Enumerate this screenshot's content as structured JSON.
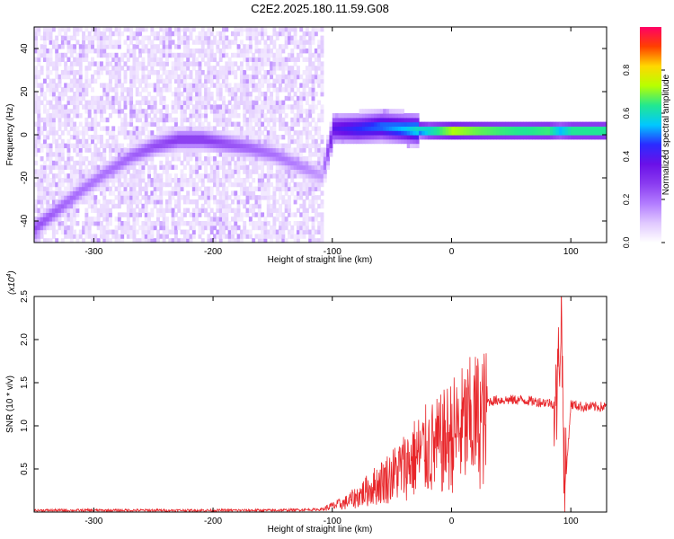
{
  "title": "C2E2.2025.180.11.59.G08",
  "colors": {
    "snr_line": "#e8262a",
    "axis": "#000000",
    "colormap": [
      "#ffffff",
      "#e0c8ff",
      "#b27cff",
      "#8a3cf0",
      "#6a10e8",
      "#2b2bff",
      "#00c8ff",
      "#22e890",
      "#b8ff00",
      "#ffd800",
      "#ff4000",
      "#ff0066"
    ]
  },
  "chart_data": [
    {
      "type": "heatmap",
      "name": "spectrogram",
      "xlabel": "Height of straight line (km)",
      "ylabel": "Frequency (Hz)",
      "xlim": [
        -350,
        130
      ],
      "ylim": [
        -50,
        50
      ],
      "xticks": [
        -300,
        -200,
        -100,
        0,
        100
      ],
      "xtick_labels": [
        "-300",
        "-200",
        "-100",
        "0",
        "100"
      ],
      "yticks": [
        -40,
        -20,
        0,
        20,
        40
      ],
      "ytick_labels": [
        "-40",
        "-20",
        "0",
        "20",
        "40"
      ],
      "colorbar": {
        "label": "Normalized spectral amplitude",
        "range": [
          0,
          1
        ],
        "ticks": [
          0.0,
          0.2,
          0.4,
          0.6,
          0.8
        ],
        "tick_labels": [
          "0.0",
          "0.2",
          "0.4",
          "0.6",
          "0.8"
        ]
      },
      "noise_region_x": [
        -350,
        -108
      ],
      "signal_track": {
        "x": [
          -350,
          -330,
          -310,
          -290,
          -270,
          -250,
          -230,
          -210,
          -190,
          -170,
          -150,
          -130,
          -110,
          -100,
          -80,
          -60,
          -40,
          -20,
          0,
          20,
          40,
          60,
          80,
          90,
          100,
          130
        ],
        "y": [
          -44,
          -35,
          -26,
          -18,
          -11,
          -6,
          -3,
          -3,
          -5,
          -7,
          -10,
          -15,
          -20,
          2,
          2,
          3,
          2,
          1,
          1,
          1,
          1,
          1,
          1,
          1,
          1,
          1
        ],
        "peak_amplitude": [
          0.25,
          0.22,
          0.2,
          0.2,
          0.22,
          0.25,
          0.28,
          0.28,
          0.25,
          0.22,
          0.2,
          0.18,
          0.15,
          0.38,
          0.45,
          0.5,
          0.55,
          0.65,
          0.8,
          0.75,
          0.72,
          0.7,
          0.72,
          0.6,
          0.7,
          0.7
        ]
      }
    },
    {
      "type": "line",
      "name": "snr",
      "xlabel": "Height of straight line (km)",
      "ylabel": "SNR (10 * v/v)",
      "y_multiplier": "(x10",
      "y_multiplier_exp": "4",
      "y_multiplier_close": ")",
      "xlim": [
        -350,
        130
      ],
      "ylim": [
        0,
        2.5
      ],
      "xticks": [
        -300,
        -200,
        -100,
        0,
        100
      ],
      "xtick_labels": [
        "-300",
        "-200",
        "-100",
        "0",
        "100"
      ],
      "yticks": [
        0.5,
        1.0,
        1.5,
        2.0,
        2.5
      ],
      "ytick_labels": [
        "0.5",
        "1.0",
        "1.5",
        "2.0",
        "2.5"
      ],
      "series": [
        {
          "x": [
            -350,
            -300,
            -250,
            -200,
            -150,
            -110,
            -100,
            -90,
            -80,
            -70,
            -60,
            -50,
            -40,
            -30,
            -20,
            -10,
            0,
            10,
            20,
            30,
            40,
            50,
            60,
            70,
            80,
            88,
            92,
            95,
            100,
            110,
            120,
            130
          ],
          "y": [
            0.02,
            0.02,
            0.02,
            0.02,
            0.02,
            0.03,
            0.08,
            0.12,
            0.2,
            0.3,
            0.4,
            0.5,
            0.62,
            0.75,
            0.85,
            0.9,
            1.05,
            1.15,
            1.25,
            1.28,
            1.3,
            1.3,
            1.3,
            1.28,
            1.27,
            1.25,
            2.3,
            0.2,
            1.25,
            1.22,
            1.22,
            1.22
          ]
        }
      ]
    }
  ]
}
